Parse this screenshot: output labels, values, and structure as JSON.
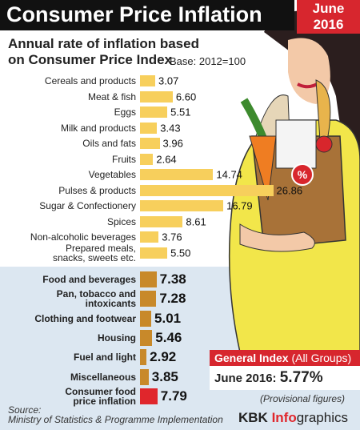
{
  "chart_data": [
    {
      "type": "bar",
      "title": "Consumer Price Inflation",
      "date": "June 2016",
      "subtitle": "Annual rate of inflation based on Consumer Price Index",
      "base": "Base: 2012=100",
      "categories": [
        "Cereals and products",
        "Meat & fish",
        "Eggs",
        "Milk and products",
        "Oils and fats",
        "Fruits",
        "Vegetables",
        "Pulses & products",
        "Sugar & Confectionery",
        "Spices",
        "Non-alcoholic beverages",
        "Prepared meals,\nsnacks, sweets etc."
      ],
      "values": [
        3.07,
        6.6,
        5.51,
        3.43,
        3.96,
        2.64,
        14.74,
        26.86,
        16.79,
        8.61,
        3.76,
        5.5
      ],
      "value_labels": [
        "3.07",
        "6.60",
        "5.51",
        "3.43",
        "3.96",
        "2.64",
        "14.74",
        "26.86",
        "16.79",
        "8.61",
        "3.76",
        "5.50"
      ],
      "color": "#f7cf5c"
    },
    {
      "type": "bar",
      "categories": [
        "Food and beverages",
        "Pan, tobacco and\nintoxicants",
        "Clothing and footwear",
        "Housing",
        "Fuel and light",
        "Miscellaneous",
        "Consumer food\nprice inflation"
      ],
      "values": [
        7.38,
        7.28,
        5.01,
        5.46,
        2.92,
        3.85,
        7.79
      ],
      "value_labels": [
        "7.38",
        "7.28",
        "5.01",
        "5.46",
        "2.92",
        "3.85",
        "7.79"
      ],
      "colors": [
        "#c8892a",
        "#c8892a",
        "#c8892a",
        "#c8892a",
        "#c8892a",
        "#c8892a",
        "#e0262c"
      ]
    }
  ],
  "general_index": {
    "title": "General Index",
    "note": "(All Groups)",
    "text": "June 2016: ",
    "value": 5.77,
    "value_label": "5.77%",
    "provisional": "(Provisional figures)"
  },
  "source": {
    "label": "Source:",
    "text": "Ministry of Statistics & Programme Implementation"
  },
  "credit": {
    "a": "KBK ",
    "b": "Info",
    "c": "graphics"
  }
}
